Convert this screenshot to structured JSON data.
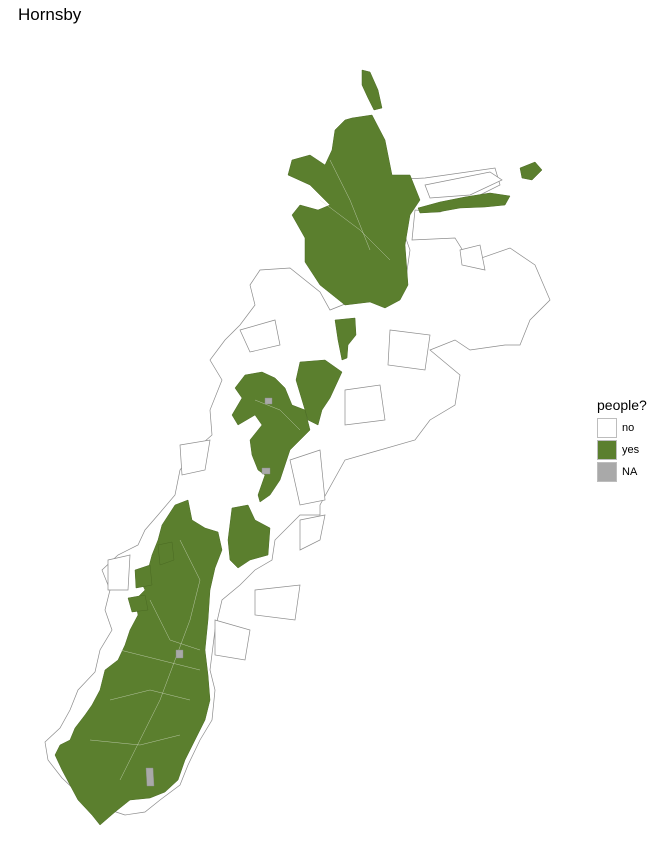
{
  "title": "Hornsby",
  "legend": {
    "title": "people?",
    "items": [
      {
        "label": "no",
        "color": "#ffffff"
      },
      {
        "label": "yes",
        "color": "#5b7f2e"
      },
      {
        "label": "NA",
        "color": "#a9a9a9"
      }
    ]
  },
  "colors": {
    "yes": "#5b7f2e",
    "no": "#ffffff",
    "na": "#a9a9a9",
    "border": "#8c8c8c"
  }
}
